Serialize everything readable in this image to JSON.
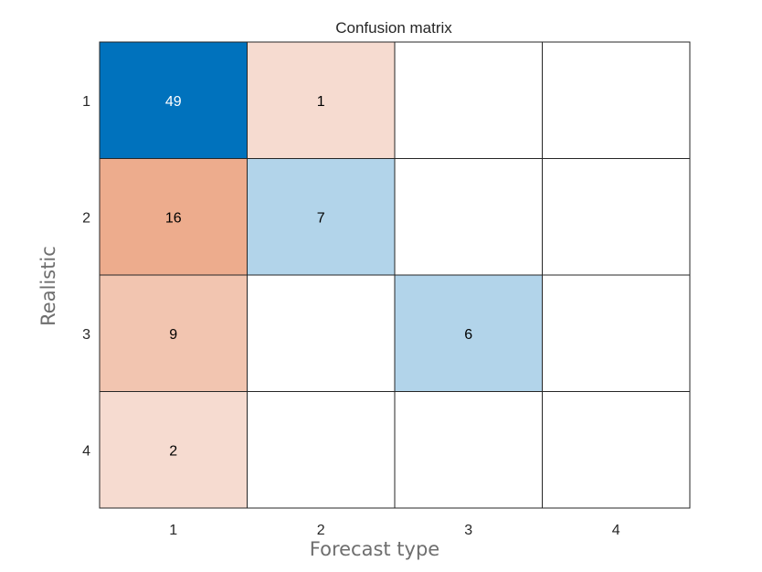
{
  "chart_data": {
    "type": "heatmap",
    "title": "Confusion matrix",
    "xlabel": "Forecast type",
    "ylabel": "Realistic",
    "x_categories": [
      "1",
      "2",
      "3",
      "4"
    ],
    "y_categories": [
      "1",
      "2",
      "3",
      "4"
    ],
    "matrix": [
      [
        49,
        1,
        null,
        null
      ],
      [
        16,
        7,
        null,
        null
      ],
      [
        9,
        null,
        6,
        null
      ],
      [
        2,
        null,
        null,
        null
      ]
    ],
    "colors": {
      "diagonal_strong": "#0072bd",
      "diagonal_light": "#b2d4ea",
      "offdiag_strong": "#edac8d",
      "offdiag_mid": "#f2c5b0",
      "offdiag_light": "#f6dbd0",
      "grid": "#262626",
      "text_dark": "#000000",
      "text_light": "#ffffff"
    }
  }
}
